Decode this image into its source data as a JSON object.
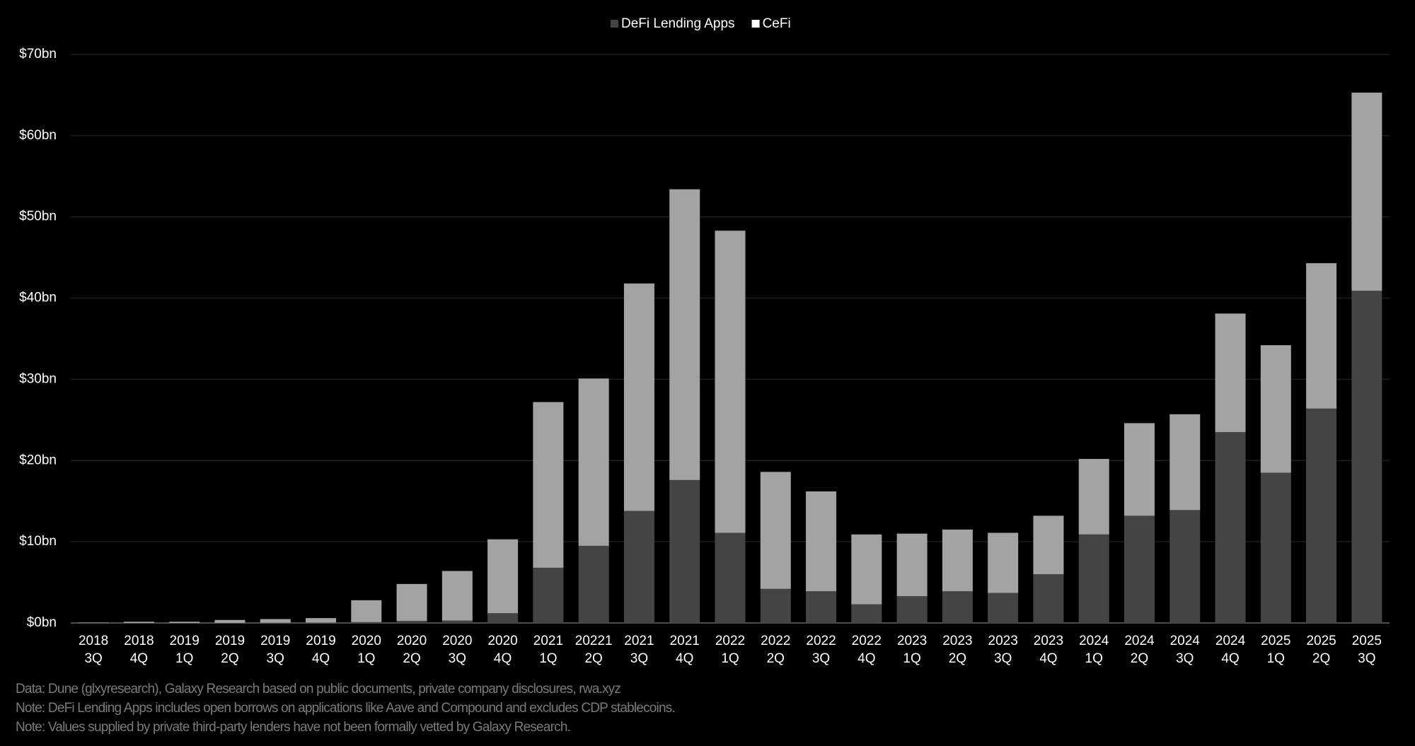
{
  "chart_data": {
    "type": "stacked_bar",
    "categories": [
      "2018\n3Q",
      "2018\n4Q",
      "2019\n1Q",
      "2019\n2Q",
      "2019\n3Q",
      "2019\n4Q",
      "2020\n1Q",
      "2020\n2Q",
      "2020\n3Q",
      "2020\n4Q",
      "2021\n1Q",
      "20221\n2Q",
      "2021\n3Q",
      "2021\n4Q",
      "2022\n1Q",
      "2022\n2Q",
      "2022\n3Q",
      "2022\n4Q",
      "2023\n1Q",
      "2023\n2Q",
      "2023\n3Q",
      "2023\n4Q",
      "2024\n1Q",
      "2024\n2Q",
      "2024\n3Q",
      "2024\n4Q",
      "2025\n1Q",
      "2025\n2Q",
      "2025\n3Q"
    ],
    "series": [
      {
        "name": "DeFi Lending Apps",
        "color": "#444444",
        "values": [
          0,
          0,
          0,
          0.02,
          0.03,
          0.05,
          0.1,
          0.25,
          0.3,
          1.2,
          6.8,
          9.5,
          13.8,
          17.6,
          11.1,
          4.2,
          3.9,
          2.3,
          3.3,
          3.9,
          3.7,
          6.0,
          10.9,
          13.2,
          13.9,
          23.5,
          18.5,
          26.4,
          40.9
        ]
      },
      {
        "name": "CeFi",
        "color": "#a3a3a3",
        "values": [
          0.05,
          0.15,
          0.15,
          0.35,
          0.45,
          0.55,
          2.7,
          4.55,
          6.1,
          9.1,
          20.4,
          20.6,
          28.0,
          35.8,
          37.2,
          14.4,
          12.3,
          8.6,
          7.7,
          7.6,
          7.4,
          7.2,
          9.3,
          11.4,
          11.8,
          14.6,
          15.7,
          17.9,
          24.4
        ]
      }
    ],
    "ylim": [
      0,
      70
    ],
    "yticks": [
      {
        "value": 0,
        "label": "$0bn"
      },
      {
        "value": 10,
        "label": "$10bn"
      },
      {
        "value": 20,
        "label": "$20bn"
      },
      {
        "value": 30,
        "label": "$30bn"
      },
      {
        "value": 40,
        "label": "$40bn"
      },
      {
        "value": 50,
        "label": "$50bn"
      },
      {
        "value": 60,
        "label": "$60bn"
      },
      {
        "value": 70,
        "label": "$70bn"
      }
    ],
    "grid": true,
    "legend": "top",
    "notes": [
      "Data: Dune (glxyresearch), Galaxy Research based on public documents, private company disclosures, rwa.xyz",
      "Note: DeFi Lending Apps includes open borrows on applications like Aave and Compound and excludes CDP stablecoins.",
      "Note: Values supplied by private third-party lenders have not been formally vetted  by Galaxy Research."
    ]
  }
}
